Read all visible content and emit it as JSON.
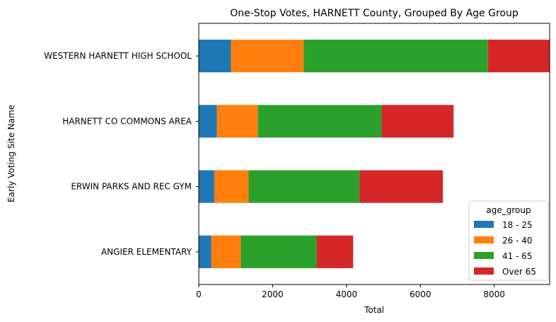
{
  "chart_data": {
    "type": "bar",
    "orientation": "horizontal",
    "stacked": true,
    "title": "One-Stop Votes, HARNETT County, Grouped By Age Group",
    "xlabel": "Total",
    "ylabel": "Early Voting Site Name",
    "xlim": [
      0,
      9500
    ],
    "x_ticks": [
      0,
      2000,
      4000,
      6000,
      8000
    ],
    "x_tick_labels": [
      "0",
      "2000",
      "4000",
      "6000",
      "8000"
    ],
    "categories": [
      "WESTERN HARNETT HIGH SCHOOL",
      "HARNETT CO COMMONS AREA",
      "ERWIN PARKS AND REC GYM",
      "ANGIER ELEMENTARY"
    ],
    "series": [
      {
        "name": "18 - 25",
        "color": "#1f77b4",
        "values": [
          870,
          490,
          420,
          340
        ]
      },
      {
        "name": "26 - 40",
        "color": "#ff7f0e",
        "values": [
          1970,
          1110,
          930,
          800
        ]
      },
      {
        "name": "41 - 65",
        "color": "#2ca02c",
        "values": [
          4990,
          3350,
          3000,
          2050
        ]
      },
      {
        "name": "Over 65",
        "color": "#d62728",
        "values": [
          1680,
          1950,
          2260,
          990
        ]
      }
    ],
    "legend": {
      "title": "age_group",
      "position": "lower-right"
    },
    "grid": false
  }
}
